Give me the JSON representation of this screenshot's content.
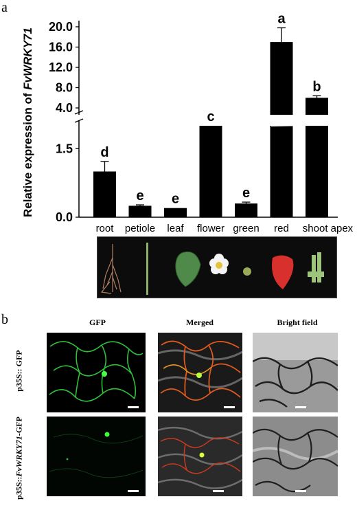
{
  "panel_a": {
    "label": "a"
  },
  "panel_b": {
    "label": "b",
    "columns": [
      "GFP",
      "Merged",
      "Bright field"
    ],
    "rows": [
      {
        "prefix": "p35S::",
        "gene": "",
        "suffix": " GFP"
      },
      {
        "prefix": "p35S::",
        "gene": "FvWRKY71",
        "suffix": "-GFP"
      }
    ]
  },
  "chart_data": {
    "type": "bar",
    "ylabel_prefix": "Relative expression of ",
    "ylabel_gene": "FvWRKY71",
    "categories": [
      "root",
      "petiole",
      "leaf",
      "flower",
      "green",
      "red",
      "shoot apex"
    ],
    "values": [
      1.0,
      0.25,
      0.2,
      2.0,
      0.3,
      17.0,
      6.0
    ],
    "errors": [
      0.22,
      0.02,
      0.0,
      0.0,
      0.03,
      2.8,
      0.4
    ],
    "significance": [
      "d",
      "e",
      "e",
      "c",
      "e",
      "a",
      "b"
    ],
    "axis_break": true,
    "lower_ticks": [
      "0.0",
      "1.5"
    ],
    "upper_ticks": [
      "4.0",
      "8.0",
      "12.0",
      "16.0",
      "20.0"
    ],
    "lower_range": [
      0,
      2.0
    ],
    "upper_range": [
      4.0,
      21.0
    ],
    "bar_color": "#000000"
  }
}
